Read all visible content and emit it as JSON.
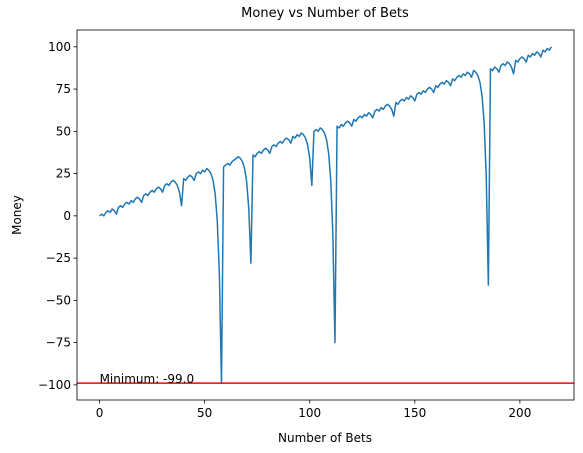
{
  "chart_data": {
    "type": "line",
    "title": "Money vs Number of Bets",
    "x_label": "Number of Bets",
    "y_label": "Money",
    "color": "#1f77b4",
    "x": [
      0,
      1,
      2,
      3,
      4,
      5,
      6,
      7,
      8,
      9,
      10,
      11,
      12,
      13,
      14,
      15,
      16,
      17,
      18,
      19,
      20,
      21,
      22,
      23,
      24,
      25,
      26,
      27,
      28,
      29,
      30,
      31,
      32,
      33,
      34,
      35,
      36,
      37,
      38,
      39,
      40,
      41,
      42,
      43,
      44,
      45,
      46,
      47,
      48,
      49,
      50,
      51,
      52,
      53,
      54,
      55,
      56,
      57,
      58,
      59,
      60,
      61,
      62,
      63,
      64,
      65,
      66,
      67,
      68,
      69,
      70,
      71,
      72,
      73,
      74,
      75,
      76,
      77,
      78,
      79,
      80,
      81,
      82,
      83,
      84,
      85,
      86,
      87,
      88,
      89,
      90,
      91,
      92,
      93,
      94,
      95,
      96,
      97,
      98,
      99,
      100,
      101,
      102,
      103,
      104,
      105,
      106,
      107,
      108,
      109,
      110,
      111,
      112,
      113,
      114,
      115,
      116,
      117,
      118,
      119,
      120,
      121,
      122,
      123,
      124,
      125,
      126,
      127,
      128,
      129,
      130,
      131,
      132,
      133,
      134,
      135,
      136,
      137,
      138,
      139,
      140,
      141,
      142,
      143,
      144,
      145,
      146,
      147,
      148,
      149,
      150,
      151,
      152,
      153,
      154,
      155,
      156,
      157,
      158,
      159,
      160,
      161,
      162,
      163,
      164,
      165,
      166,
      167,
      168,
      169,
      170,
      171,
      172,
      173,
      174,
      175,
      176,
      177,
      178,
      179,
      180,
      181,
      182,
      183,
      184,
      185,
      186,
      187,
      188,
      189,
      190,
      191,
      192,
      193,
      194,
      195,
      196,
      197,
      198,
      199,
      200,
      201,
      202,
      203,
      204,
      205,
      206,
      207,
      208,
      209,
      210,
      211,
      212,
      213,
      214,
      215
    ],
    "values": [
      0,
      1,
      0,
      2,
      3,
      2,
      4,
      3,
      1,
      5,
      6,
      5,
      7,
      8,
      7,
      9,
      8,
      10,
      11,
      10,
      8,
      12,
      13,
      12,
      14,
      15,
      14,
      16,
      17,
      16,
      14,
      18,
      19,
      18,
      20,
      21,
      20,
      18,
      14,
      6,
      22,
      21,
      23,
      24,
      23,
      21,
      25,
      26,
      25,
      27,
      26,
      28,
      27,
      25,
      21,
      13,
      -3,
      -35,
      -99,
      29,
      30,
      31,
      30,
      32,
      33,
      34,
      35,
      34,
      32,
      28,
      20,
      4,
      -28,
      36,
      35,
      37,
      38,
      37,
      39,
      40,
      39,
      37,
      41,
      42,
      41,
      43,
      44,
      43,
      45,
      46,
      45,
      43,
      47,
      46,
      48,
      47,
      49,
      48,
      46,
      42,
      34,
      18,
      50,
      51,
      50,
      52,
      51,
      49,
      45,
      37,
      21,
      -11,
      -75,
      53,
      52,
      54,
      53,
      55,
      56,
      55,
      53,
      57,
      56,
      58,
      59,
      58,
      60,
      59,
      61,
      60,
      58,
      62,
      63,
      62,
      64,
      63,
      65,
      66,
      65,
      63,
      59,
      67,
      66,
      68,
      69,
      68,
      70,
      69,
      71,
      70,
      68,
      72,
      73,
      72,
      74,
      73,
      75,
      76,
      75,
      73,
      77,
      76,
      78,
      79,
      78,
      80,
      79,
      77,
      81,
      80,
      82,
      83,
      82,
      84,
      83,
      85,
      84,
      82,
      86,
      85,
      83,
      79,
      71,
      55,
      23,
      -41,
      87,
      86,
      88,
      87,
      85,
      89,
      90,
      89,
      91,
      90,
      88,
      84,
      92,
      91,
      93,
      94,
      93,
      91,
      95,
      94,
      96,
      95,
      97,
      96,
      94,
      98,
      97,
      99,
      98,
      100
    ],
    "xlim": [
      -10.75,
      225.75
    ],
    "xticks": [
      0,
      50,
      100,
      150,
      200
    ],
    "ylim": [
      -108.95,
      109.95
    ],
    "yticks": [
      {
        "value": -100,
        "label": "−100"
      },
      {
        "value": -75,
        "label": "−75"
      },
      {
        "value": -50,
        "label": "−50"
      },
      {
        "value": -25,
        "label": "−25"
      },
      0,
      25,
      50,
      75,
      100
    ],
    "hline": {
      "value": -99,
      "color": "#ff0000"
    },
    "annotation": {
      "text": "Minimum: -99.0",
      "x": 0,
      "y": -99
    }
  }
}
